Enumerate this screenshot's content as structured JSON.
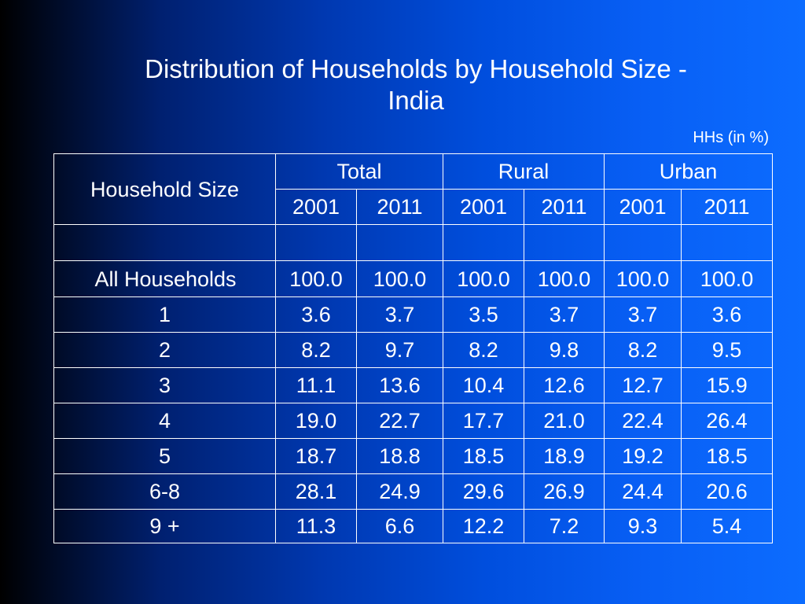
{
  "colors": {
    "text": "#ffffff",
    "grid_lines": "#ffffff",
    "background_gradient": [
      "#000000",
      "#002070",
      "#0038b0",
      "#004edd",
      "#085ff5",
      "#0c6cff"
    ]
  },
  "chart_data": {
    "type": "table",
    "title_lines": [
      "Distribution of Households by Household Size -",
      "India"
    ],
    "unit_note": "HHs (in %)",
    "row_header": "Household Size",
    "column_groups": [
      {
        "name": "Total",
        "years": [
          "2001",
          "2011"
        ]
      },
      {
        "name": "Rural",
        "years": [
          "2001",
          "2011"
        ]
      },
      {
        "name": "Urban",
        "years": [
          "2001",
          "2011"
        ]
      }
    ],
    "rows": [
      {
        "label": "All Households",
        "values": [
          "100.0",
          "100.0",
          "100.0",
          "100.0",
          "100.0",
          "100.0"
        ]
      },
      {
        "label": "1",
        "values": [
          "3.6",
          "3.7",
          "3.5",
          "3.7",
          "3.7",
          "3.6"
        ]
      },
      {
        "label": "2",
        "values": [
          "8.2",
          "9.7",
          "8.2",
          "9.8",
          "8.2",
          "9.5"
        ]
      },
      {
        "label": "3",
        "values": [
          "11.1",
          "13.6",
          "10.4",
          "12.6",
          "12.7",
          "15.9"
        ]
      },
      {
        "label": "4",
        "values": [
          "19.0",
          "22.7",
          "17.7",
          "21.0",
          "22.4",
          "26.4"
        ]
      },
      {
        "label": "5",
        "values": [
          "18.7",
          "18.8",
          "18.5",
          "18.9",
          "19.2",
          "18.5"
        ]
      },
      {
        "label": "6-8",
        "values": [
          "28.1",
          "24.9",
          "29.6",
          "26.9",
          "24.4",
          "20.6"
        ]
      },
      {
        "label": "9 +",
        "values": [
          "11.3",
          "6.6",
          "12.2",
          "7.2",
          "9.3",
          "5.4"
        ]
      }
    ]
  }
}
